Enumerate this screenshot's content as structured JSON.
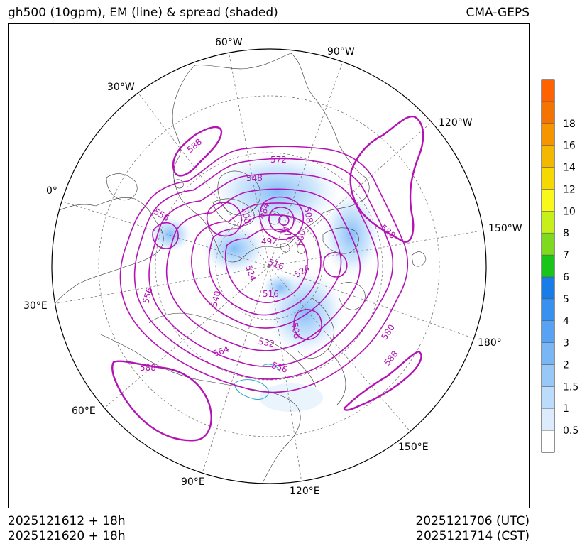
{
  "header": {
    "title_left": "gh500 (10gpm), EM (line) & spread (shaded)",
    "title_right": "CMA-GEPS"
  },
  "footer": {
    "init_utc": "2025121612 + 18h",
    "init_cst": "2025121620 + 18h",
    "valid_utc": "2025121706 (UTC)",
    "valid_cst": "2025121714 (CST)"
  },
  "map": {
    "projection": "north polar stereographic",
    "longitude_labels": [
      "60°W",
      "90°W",
      "30°W",
      "120°W",
      "0°",
      "150°W",
      "30°E",
      "180°",
      "60°E",
      "150°E",
      "90°E",
      "120°E"
    ],
    "contour_labels": [
      "588",
      "572",
      "548",
      "500",
      "484",
      "508",
      "476",
      "492",
      "500",
      "516",
      "524",
      "516",
      "524",
      "556",
      "540",
      "556",
      "532",
      "508",
      "564",
      "556",
      "580",
      "588",
      "588",
      "588"
    ],
    "contour_color": "#b413b4",
    "land_outline_color": "#333333",
    "lake_color": "#1aa7c4"
  },
  "colorbar": {
    "levels": [
      "0.5",
      "1",
      "1.5",
      "2",
      "3",
      "4",
      "5",
      "6",
      "7",
      "8",
      "10",
      "12",
      "14",
      "16",
      "18"
    ],
    "colors": [
      "#ffffff",
      "#dcecfc",
      "#bcdcfb",
      "#97c8f8",
      "#78b6f6",
      "#57a2f2",
      "#3891ee",
      "#1a7de7",
      "#18c518",
      "#7fd91d",
      "#c7ef19",
      "#f8f81a",
      "#f5d900",
      "#f5b800",
      "#f59600",
      "#f57300",
      "#ff6200"
    ]
  }
}
